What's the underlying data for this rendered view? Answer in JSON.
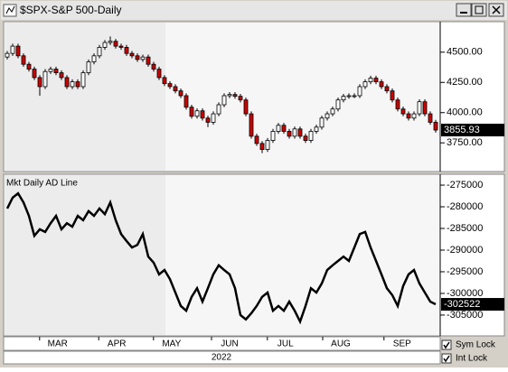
{
  "chart_data": [
    {
      "type": "candlestick",
      "title": "$SPX-S&P 500-Daily",
      "xlabel": "2022",
      "open": [
        4460,
        4490,
        4550,
        4470,
        4400,
        4360,
        4290,
        4215,
        4340,
        4360,
        4330,
        4290,
        4215,
        4255,
        4215,
        4330,
        4420,
        4470,
        4540,
        4580,
        4590,
        4550,
        4540,
        4490,
        4470,
        4440,
        4460,
        4400,
        4360,
        4290,
        4240,
        4215,
        4180,
        4140,
        4045,
        3970,
        4015,
        3955,
        3920,
        3990,
        4065,
        4140,
        4150,
        4135,
        4105,
        3990,
        3805,
        3745,
        3695,
        3770,
        3845,
        3895,
        3845,
        3805,
        3865,
        3805,
        3770,
        3845,
        3880,
        3955,
        3990,
        4030,
        4105,
        4135,
        4140,
        4140,
        4215,
        4255,
        4285,
        4255,
        4215,
        4180,
        4105,
        4030,
        3990,
        3955,
        3990,
        4090,
        3990,
        3920
      ],
      "high": [
        4510,
        4570,
        4570,
        4490,
        4420,
        4380,
        4310,
        4360,
        4380,
        4380,
        4350,
        4310,
        4275,
        4275,
        4350,
        4440,
        4490,
        4560,
        4600,
        4630,
        4610,
        4570,
        4560,
        4510,
        4490,
        4480,
        4480,
        4420,
        4380,
        4310,
        4260,
        4235,
        4200,
        4160,
        4065,
        4035,
        4035,
        3975,
        4010,
        4085,
        4160,
        4170,
        4170,
        4155,
        4125,
        4010,
        3825,
        3765,
        3790,
        3865,
        3915,
        3915,
        3865,
        3885,
        3885,
        3825,
        3865,
        3900,
        3975,
        4010,
        4050,
        4125,
        4155,
        4160,
        4160,
        4235,
        4275,
        4305,
        4305,
        4275,
        4235,
        4200,
        4125,
        4050,
        4010,
        4010,
        4110,
        4110,
        4010,
        3940
      ],
      "low": [
        4440,
        4470,
        4450,
        4380,
        4340,
        4270,
        4140,
        4195,
        4320,
        4310,
        4270,
        4195,
        4195,
        4195,
        4195,
        4310,
        4400,
        4450,
        4520,
        4560,
        4530,
        4520,
        4470,
        4450,
        4420,
        4420,
        4380,
        4340,
        4270,
        4220,
        4195,
        4160,
        4120,
        4025,
        3950,
        3950,
        3935,
        3880,
        3900,
        3970,
        4045,
        4120,
        4115,
        4085,
        3970,
        3785,
        3725,
        3665,
        3675,
        3750,
        3825,
        3825,
        3785,
        3785,
        3785,
        3750,
        3750,
        3825,
        3860,
        3935,
        3970,
        4010,
        4085,
        4115,
        4120,
        4120,
        4195,
        4235,
        4235,
        4195,
        4160,
        4085,
        4010,
        3970,
        3935,
        3935,
        3970,
        3970,
        3900,
        3835
      ],
      "close": [
        4490,
        4550,
        4470,
        4400,
        4360,
        4290,
        4215,
        4340,
        4360,
        4330,
        4290,
        4215,
        4255,
        4215,
        4330,
        4420,
        4470,
        4540,
        4580,
        4590,
        4550,
        4540,
        4490,
        4470,
        4440,
        4460,
        4400,
        4360,
        4290,
        4240,
        4215,
        4180,
        4140,
        4045,
        3970,
        4015,
        3955,
        3920,
        3990,
        4065,
        4140,
        4150,
        4135,
        4105,
        3990,
        3805,
        3745,
        3695,
        3770,
        3845,
        3895,
        3845,
        3805,
        3865,
        3805,
        3770,
        3845,
        3880,
        3955,
        3990,
        4030,
        4105,
        4135,
        4140,
        4140,
        4215,
        4255,
        4285,
        4255,
        4215,
        4180,
        4105,
        4030,
        3990,
        3955,
        3990,
        4090,
        3990,
        3920,
        3855.93
      ],
      "up_color": "#ffffff",
      "down_color": "#cc0000",
      "ylim": [
        3520,
        4745
      ],
      "yticks": [
        {
          "value": 3750,
          "label": "3750.00"
        },
        {
          "value": 4000,
          "label": "4000.00"
        },
        {
          "value": 4250,
          "label": "4250.00"
        },
        {
          "value": 4500,
          "label": "4500.00"
        }
      ],
      "xticks": [
        {
          "value": 9.3,
          "label": "MAR"
        },
        {
          "value": 20.2,
          "label": "APR"
        },
        {
          "value": 30.3,
          "label": "MAY"
        },
        {
          "value": 41,
          "label": "JUN"
        },
        {
          "value": 51.3,
          "label": "JUL"
        },
        {
          "value": 61.5,
          "label": "AUG"
        },
        {
          "value": 72.8,
          "label": "SEP"
        }
      ]
    },
    {
      "type": "line",
      "title": "Mkt Daily AD Line",
      "color": "#000000",
      "values": [
        -280400,
        -277900,
        -276900,
        -279000,
        -282100,
        -286700,
        -285200,
        -285800,
        -283800,
        -282100,
        -285200,
        -283800,
        -284600,
        -282100,
        -283100,
        -281000,
        -282100,
        -280400,
        -281700,
        -279000,
        -283100,
        -286300,
        -287900,
        -289400,
        -288800,
        -286300,
        -291500,
        -292900,
        -295600,
        -294600,
        -296700,
        -299800,
        -302900,
        -304000,
        -300800,
        -298800,
        -301900,
        -298800,
        -295600,
        -293500,
        -294600,
        -295600,
        -298800,
        -305000,
        -306000,
        -304600,
        -302900,
        -300800,
        -299800,
        -304000,
        -302900,
        -304000,
        -301900,
        -304000,
        -306500,
        -302900,
        -298800,
        -299800,
        -297700,
        -294600,
        -293500,
        -292500,
        -291500,
        -292500,
        -289400,
        -286300,
        -285800,
        -289400,
        -292500,
        -295600,
        -298800,
        -300400,
        -302900,
        -298300,
        -295600,
        -294600,
        -297700,
        -299800,
        -301900,
        -302522
      ],
      "ylim": [
        -309600,
        -272700
      ],
      "yticks": [
        -275000,
        -280000,
        -285000,
        -290000,
        -295000,
        -300000,
        -305000
      ]
    }
  ],
  "controls": [
    "Sym Lock",
    "Int Lock"
  ]
}
